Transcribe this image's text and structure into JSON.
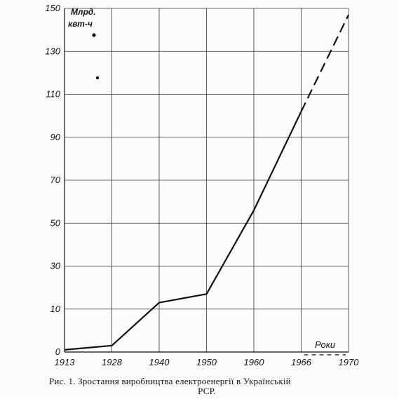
{
  "chart_data": {
    "type": "line",
    "ylabel_line1": "Млрд.",
    "ylabel_line2": "квт-ч",
    "xlabel": "Роки",
    "y_ticks": [
      0,
      10,
      30,
      50,
      70,
      90,
      110,
      130,
      150
    ],
    "x_ticks": [
      "1913",
      "1928",
      "1940",
      "1950",
      "1960",
      "1966",
      "1970"
    ],
    "ylim": [
      0,
      150
    ],
    "grid": true,
    "series": [
      {
        "style": "solid",
        "x": [
          1913,
          1928,
          1940,
          1950,
          1960,
          1966
        ],
        "y": [
          0.5,
          1.5,
          13,
          17,
          56,
          102
        ]
      },
      {
        "style": "dashed",
        "x": [
          1966,
          1970
        ],
        "y": [
          102,
          147
        ]
      }
    ]
  },
  "caption": {
    "line1": "Рис. 1. Зростання виробництва електроенергії в Українській",
    "line2": "РСР."
  }
}
